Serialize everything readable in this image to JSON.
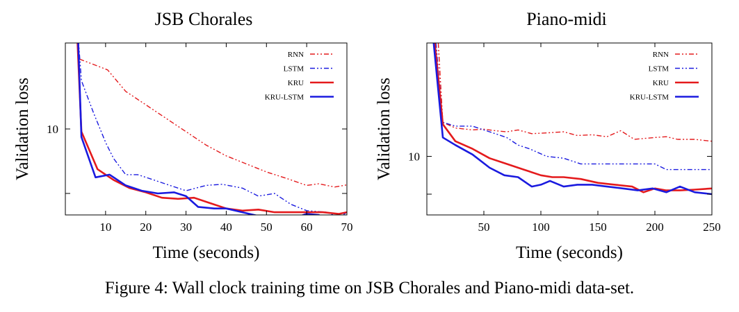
{
  "caption": "Figure 4: Wall clock training time on JSB Chorales and Piano-midi data-set.",
  "colors": {
    "red": "#e41a1c",
    "blue": "#1a1adf"
  },
  "chart_data": [
    {
      "type": "line",
      "title": "JSB Chorales",
      "xlabel": "Time (seconds)",
      "ylabel": "Validation loss",
      "xlim": [
        0,
        70
      ],
      "ylim": [
        8.4,
        11.6
      ],
      "y_ticks": [
        8.8,
        10
      ],
      "y_tick_labels": [
        "",
        "10"
      ],
      "x_ticks": [
        10,
        20,
        30,
        40,
        50,
        60,
        70
      ],
      "grid": false,
      "legend": "top-right",
      "series": [
        {
          "name": "RNN",
          "color": "#e41a1c",
          "dash": "7,3,2,3,2,3",
          "width": 1.4,
          "x": [
            3.5,
            10.5,
            15,
            20,
            25,
            30,
            35,
            40,
            45,
            50,
            55,
            60,
            63,
            67,
            70
          ],
          "y": [
            11.3,
            11.1,
            10.7,
            10.45,
            10.2,
            9.95,
            9.7,
            9.5,
            9.35,
            9.2,
            9.08,
            8.95,
            8.98,
            8.92,
            8.96
          ]
        },
        {
          "name": "LSTM",
          "color": "#1a1adf",
          "dash": "7,3,2,3,2,3",
          "width": 1.4,
          "x": [
            3,
            4,
            7,
            10,
            12,
            15,
            18,
            22,
            26,
            30,
            35,
            39,
            44,
            48,
            52,
            56,
            60,
            65,
            68,
            70
          ],
          "y": [
            11.9,
            10.9,
            10.3,
            9.75,
            9.45,
            9.15,
            9.15,
            9.05,
            8.95,
            8.85,
            8.95,
            8.97,
            8.9,
            8.75,
            8.8,
            8.6,
            8.48,
            8.45,
            8.35,
            8.45
          ]
        },
        {
          "name": "KRU",
          "color": "#e41a1c",
          "dash": "",
          "width": 2.6,
          "x": [
            2.5,
            4,
            8,
            12,
            16,
            20,
            24,
            28,
            32,
            36,
            40,
            44,
            48,
            52,
            56,
            60,
            64,
            68,
            70
          ],
          "y": [
            12.5,
            9.95,
            9.25,
            9.05,
            8.9,
            8.82,
            8.72,
            8.7,
            8.72,
            8.62,
            8.52,
            8.48,
            8.5,
            8.45,
            8.45,
            8.45,
            8.45,
            8.42,
            8.45
          ]
        },
        {
          "name": "KRU-LSTM",
          "color": "#1a1adf",
          "dash": "",
          "width": 2.6,
          "x": [
            2.8,
            4,
            7.5,
            11,
            15,
            19,
            23,
            27,
            30,
            33,
            37,
            40,
            44,
            48,
            52,
            56,
            60,
            63,
            66,
            70
          ],
          "y": [
            12.5,
            9.85,
            9.1,
            9.15,
            8.95,
            8.85,
            8.8,
            8.82,
            8.75,
            8.55,
            8.52,
            8.52,
            8.45,
            8.38,
            8.38,
            8.32,
            8.42,
            8.4,
            8.25,
            8.28
          ]
        }
      ]
    },
    {
      "type": "line",
      "title": "Piano-midi",
      "xlabel": "Time (seconds)",
      "ylabel": "Validation loss",
      "xlim": [
        0,
        250
      ],
      "ylim": [
        8.45,
        13.0
      ],
      "y_ticks": [
        9.0,
        10
      ],
      "y_tick_labels": [
        "",
        "10"
      ],
      "x_ticks": [
        50,
        100,
        150,
        200,
        250
      ],
      "grid": false,
      "legend": "top-right",
      "series": [
        {
          "name": "RNN",
          "color": "#e41a1c",
          "dash": "7,3,2,3,2,3",
          "width": 1.4,
          "x": [
            10,
            14,
            25,
            40,
            50,
            60,
            70,
            80,
            92,
            105,
            120,
            132,
            145,
            158,
            170,
            182,
            200,
            210,
            220,
            235,
            250
          ],
          "y": [
            13.0,
            10.9,
            10.75,
            10.7,
            10.72,
            10.68,
            10.65,
            10.7,
            10.6,
            10.62,
            10.65,
            10.55,
            10.57,
            10.52,
            10.68,
            10.45,
            10.5,
            10.52,
            10.45,
            10.45,
            10.4
          ]
        },
        {
          "name": "LSTM",
          "color": "#1a1adf",
          "dash": "7,3,2,3,2,3",
          "width": 1.4,
          "x": [
            8,
            14,
            25,
            40,
            50,
            60,
            70,
            80,
            90,
            105,
            120,
            135,
            148,
            160,
            172,
            185,
            200,
            210,
            225,
            240,
            250
          ],
          "y": [
            13.0,
            10.9,
            10.8,
            10.8,
            10.7,
            10.6,
            10.5,
            10.3,
            10.2,
            10.0,
            9.95,
            9.8,
            9.8,
            9.8,
            9.8,
            9.8,
            9.8,
            9.65,
            9.65,
            9.65,
            9.65
          ]
        },
        {
          "name": "KRU",
          "color": "#e41a1c",
          "dash": "",
          "width": 2.6,
          "x": [
            7,
            14,
            25,
            40,
            55,
            70,
            85,
            100,
            110,
            120,
            135,
            150,
            165,
            180,
            190,
            200,
            210,
            222,
            235,
            250
          ],
          "y": [
            13.0,
            10.85,
            10.4,
            10.2,
            9.95,
            9.8,
            9.65,
            9.5,
            9.45,
            9.45,
            9.4,
            9.3,
            9.25,
            9.2,
            9.05,
            9.15,
            9.1,
            9.1,
            9.12,
            9.15
          ]
        },
        {
          "name": "KRU-LSTM",
          "color": "#1a1adf",
          "dash": "",
          "width": 2.6,
          "x": [
            6,
            14,
            25,
            40,
            55,
            68,
            80,
            92,
            100,
            108,
            120,
            132,
            145,
            158,
            172,
            185,
            198,
            210,
            222,
            235,
            250
          ],
          "y": [
            13.0,
            10.5,
            10.3,
            10.05,
            9.7,
            9.5,
            9.45,
            9.2,
            9.25,
            9.35,
            9.2,
            9.25,
            9.25,
            9.2,
            9.15,
            9.1,
            9.15,
            9.05,
            9.2,
            9.05,
            9.0
          ]
        }
      ]
    }
  ]
}
